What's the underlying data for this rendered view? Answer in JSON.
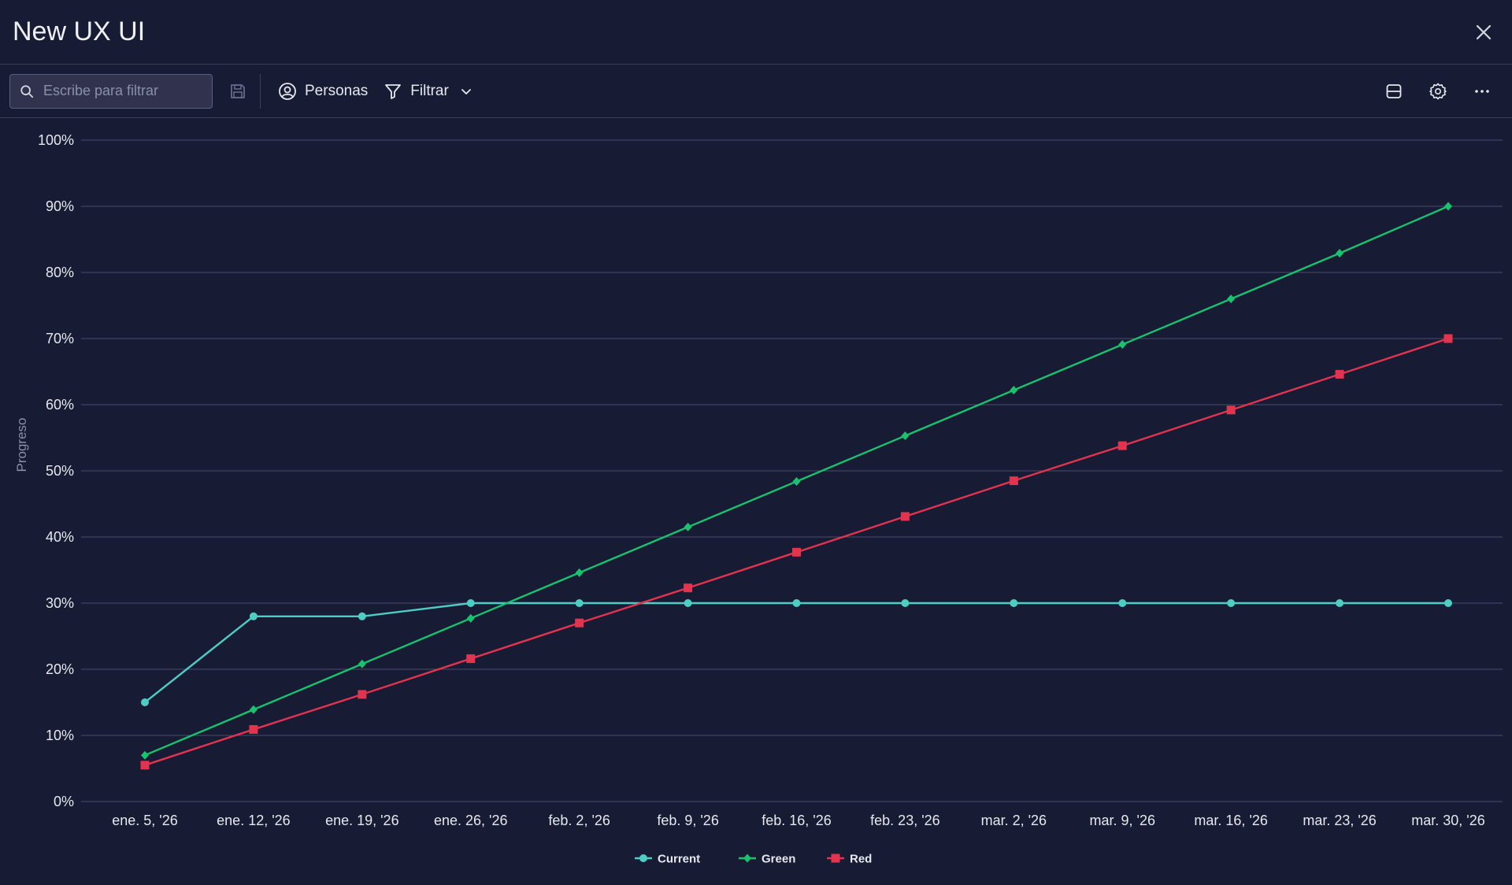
{
  "header": {
    "title": "New UX UI"
  },
  "toolbar": {
    "search_placeholder": "Escribe para filtrar",
    "people_label": "Personas",
    "filter_label": "Filtrar"
  },
  "chart_data": {
    "type": "line",
    "ylabel": "Progreso",
    "ylim": [
      0,
      100
    ],
    "y_ticks": [
      "0%",
      "10%",
      "20%",
      "30%",
      "40%",
      "50%",
      "60%",
      "70%",
      "80%",
      "90%",
      "100%"
    ],
    "categories": [
      "ene. 5, '26",
      "ene. 12, '26",
      "ene. 19, '26",
      "ene. 26, '26",
      "feb. 2, '26",
      "feb. 9, '26",
      "feb. 16, '26",
      "feb. 23, '26",
      "mar. 2, '26",
      "mar. 9, '26",
      "mar. 16, '26",
      "mar. 23, '26",
      "mar. 30, '26"
    ],
    "grid": true,
    "legend_position": "bottom-center",
    "series": [
      {
        "name": "Current",
        "color": "#4ecdc4",
        "marker": "circle",
        "values": [
          15,
          28,
          28,
          30,
          30,
          30,
          30,
          30,
          30,
          30,
          30,
          30,
          30
        ]
      },
      {
        "name": "Green",
        "color": "#18c26e",
        "marker": "diamond",
        "values": [
          7,
          13.9,
          20.8,
          27.7,
          34.6,
          41.5,
          48.4,
          55.3,
          62.2,
          69.1,
          76.0,
          82.9,
          90
        ]
      },
      {
        "name": "Red",
        "color": "#e2334f",
        "marker": "square",
        "values": [
          5.5,
          10.9,
          16.2,
          21.6,
          27.0,
          32.3,
          37.7,
          43.1,
          48.5,
          53.8,
          59.2,
          64.6,
          70
        ]
      }
    ]
  }
}
